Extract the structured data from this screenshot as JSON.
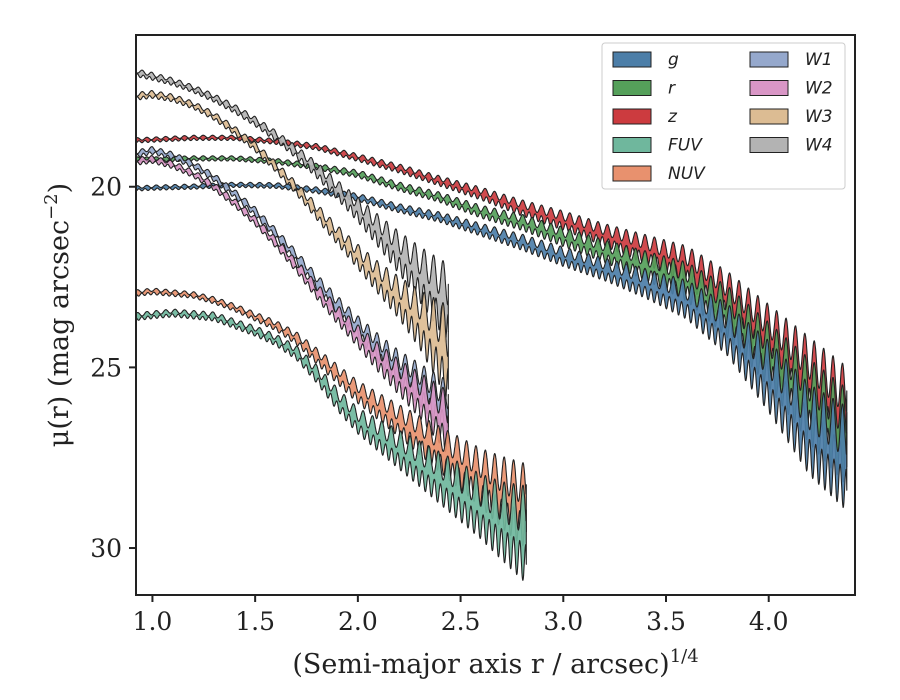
{
  "chart_data": {
    "type": "area",
    "title": "",
    "xlabel": "(Semi-major axis r / arcsec)",
    "xlabel_exponent": "1/4",
    "ylabel": "μ(r) (mag arcsec",
    "ylabel_exponent": "−2",
    "ylabel_close": ")",
    "xlim": [
      0.92,
      4.42
    ],
    "ylim": [
      31.3,
      15.8
    ],
    "y_inverted": true,
    "xticks": [
      1.0,
      1.5,
      2.0,
      2.5,
      3.0,
      3.5,
      4.0
    ],
    "xtick_labels": [
      "1.0",
      "1.5",
      "2.0",
      "2.5",
      "3.0",
      "3.5",
      "4.0"
    ],
    "yticks": [
      20,
      25,
      30
    ],
    "ytick_labels": [
      "20",
      "25",
      "30"
    ],
    "grid": false,
    "legend": {
      "placement": "top-right",
      "columns": 2
    },
    "series": [
      {
        "name": "g",
        "color": "#4c7ea8",
        "x": [
          0.92,
          1.0,
          1.2,
          1.4,
          1.6,
          1.8,
          2.0,
          2.2,
          2.4,
          2.6,
          2.8,
          3.0,
          3.2,
          3.4,
          3.6,
          3.8,
          4.0,
          4.2,
          4.38
        ],
        "y": [
          20.05,
          20.03,
          20.0,
          19.95,
          19.97,
          20.1,
          20.3,
          20.6,
          20.85,
          21.2,
          21.55,
          21.95,
          22.3,
          22.7,
          23.15,
          24.0,
          25.3,
          26.8,
          27.6
        ],
        "width": [
          0.08,
          0.08,
          0.08,
          0.08,
          0.09,
          0.1,
          0.12,
          0.14,
          0.16,
          0.2,
          0.25,
          0.3,
          0.35,
          0.45,
          0.6,
          0.8,
          1.1,
          1.4,
          1.6
        ]
      },
      {
        "name": "r",
        "color": "#55a05a",
        "x": [
          0.92,
          1.0,
          1.2,
          1.4,
          1.6,
          1.8,
          2.0,
          2.2,
          2.4,
          2.6,
          2.8,
          3.0,
          3.2,
          3.4,
          3.6,
          3.8,
          4.0,
          4.2,
          4.38
        ],
        "y": [
          19.25,
          19.25,
          19.22,
          19.22,
          19.3,
          19.45,
          19.65,
          20.0,
          20.3,
          20.7,
          21.0,
          21.4,
          21.8,
          22.2,
          22.65,
          23.5,
          24.7,
          26.0,
          27.0
        ],
        "width": [
          0.08,
          0.08,
          0.08,
          0.08,
          0.09,
          0.1,
          0.12,
          0.14,
          0.16,
          0.2,
          0.25,
          0.3,
          0.35,
          0.45,
          0.6,
          0.8,
          1.0,
          1.3,
          1.5
        ]
      },
      {
        "name": "z",
        "color": "#cc3b3f",
        "x": [
          0.92,
          1.0,
          1.2,
          1.4,
          1.6,
          1.8,
          2.0,
          2.2,
          2.4,
          2.6,
          2.8,
          3.0,
          3.2,
          3.4,
          3.6,
          3.8,
          4.0,
          4.2,
          4.38
        ],
        "y": [
          18.72,
          18.7,
          18.65,
          18.65,
          18.75,
          18.9,
          19.2,
          19.5,
          19.85,
          20.2,
          20.6,
          20.95,
          21.35,
          21.75,
          22.2,
          23.1,
          24.2,
          25.4,
          26.4
        ],
        "width": [
          0.08,
          0.08,
          0.08,
          0.08,
          0.09,
          0.1,
          0.12,
          0.14,
          0.16,
          0.2,
          0.25,
          0.3,
          0.35,
          0.45,
          0.6,
          0.8,
          1.0,
          1.3,
          1.5
        ]
      },
      {
        "name": "FUV",
        "color": "#6fb79d",
        "x": [
          0.92,
          1.0,
          1.1,
          1.2,
          1.3,
          1.4,
          1.5,
          1.6,
          1.7,
          1.8,
          1.9,
          2.0,
          2.1,
          2.2,
          2.3,
          2.4,
          2.5,
          2.6,
          2.7,
          2.82
        ],
        "y": [
          23.6,
          23.55,
          23.5,
          23.55,
          23.6,
          23.8,
          24.0,
          24.25,
          24.6,
          25.2,
          25.9,
          26.5,
          26.9,
          27.3,
          27.7,
          28.1,
          28.5,
          28.9,
          29.3,
          29.7
        ],
        "width": [
          0.12,
          0.12,
          0.12,
          0.13,
          0.14,
          0.15,
          0.16,
          0.18,
          0.22,
          0.28,
          0.35,
          0.4,
          0.5,
          0.6,
          0.7,
          0.8,
          0.9,
          1.0,
          1.2,
          1.5
        ]
      },
      {
        "name": "NUV",
        "color": "#e8916e",
        "x": [
          0.92,
          1.0,
          1.1,
          1.2,
          1.3,
          1.4,
          1.5,
          1.6,
          1.7,
          1.8,
          1.9,
          2.0,
          2.1,
          2.2,
          2.3,
          2.4,
          2.5,
          2.6,
          2.7,
          2.82
        ],
        "y": [
          22.95,
          22.9,
          22.95,
          23.0,
          23.15,
          23.35,
          23.6,
          23.85,
          24.2,
          24.7,
          25.2,
          25.7,
          26.1,
          26.5,
          26.9,
          27.3,
          27.7,
          28.1,
          28.5,
          28.9
        ],
        "width": [
          0.1,
          0.1,
          0.1,
          0.1,
          0.11,
          0.12,
          0.14,
          0.16,
          0.2,
          0.25,
          0.3,
          0.35,
          0.42,
          0.5,
          0.6,
          0.7,
          0.8,
          0.9,
          1.1,
          1.3
        ]
      },
      {
        "name": "W1",
        "color": "#95a8cc",
        "x": [
          0.92,
          1.0,
          1.1,
          1.2,
          1.3,
          1.4,
          1.5,
          1.6,
          1.7,
          1.8,
          1.9,
          2.0,
          2.1,
          2.2,
          2.3,
          2.4,
          2.44
        ],
        "y": [
          19.1,
          19.0,
          19.15,
          19.4,
          19.75,
          20.2,
          20.7,
          21.3,
          21.95,
          22.65,
          23.3,
          23.9,
          24.5,
          25.05,
          25.5,
          26.0,
          26.2
        ],
        "width": [
          0.12,
          0.12,
          0.12,
          0.12,
          0.13,
          0.14,
          0.15,
          0.17,
          0.2,
          0.25,
          0.3,
          0.35,
          0.45,
          0.55,
          0.65,
          0.8,
          0.9
        ]
      },
      {
        "name": "W2",
        "color": "#d996c6",
        "x": [
          0.92,
          1.0,
          1.1,
          1.2,
          1.3,
          1.4,
          1.5,
          1.6,
          1.7,
          1.8,
          1.9,
          2.0,
          2.1,
          2.2,
          2.3,
          2.4,
          2.44
        ],
        "y": [
          19.3,
          19.25,
          19.4,
          19.65,
          20.0,
          20.45,
          20.95,
          21.55,
          22.2,
          22.9,
          23.55,
          24.15,
          24.75,
          25.3,
          25.8,
          26.35,
          26.6
        ],
        "width": [
          0.12,
          0.12,
          0.12,
          0.12,
          0.13,
          0.14,
          0.15,
          0.17,
          0.2,
          0.25,
          0.3,
          0.35,
          0.45,
          0.55,
          0.7,
          0.9,
          1.0
        ]
      },
      {
        "name": "W3",
        "color": "#dcbc93",
        "x": [
          0.92,
          1.0,
          1.1,
          1.2,
          1.3,
          1.4,
          1.5,
          1.6,
          1.7,
          1.8,
          1.9,
          2.0,
          2.1,
          2.2,
          2.3,
          2.4,
          2.44
        ],
        "y": [
          17.5,
          17.45,
          17.55,
          17.75,
          18.05,
          18.45,
          18.9,
          19.45,
          20.05,
          20.7,
          21.35,
          21.95,
          22.55,
          23.1,
          23.7,
          24.4,
          24.8
        ],
        "width": [
          0.12,
          0.12,
          0.12,
          0.12,
          0.13,
          0.14,
          0.15,
          0.17,
          0.2,
          0.25,
          0.3,
          0.38,
          0.5,
          0.65,
          0.9,
          1.3,
          1.6
        ]
      },
      {
        "name": "W4",
        "color": "#b3b3b3",
        "x": [
          0.92,
          1.0,
          1.1,
          1.2,
          1.3,
          1.4,
          1.5,
          1.6,
          1.7,
          1.8,
          1.9,
          2.0,
          2.1,
          2.2,
          2.3,
          2.4,
          2.44
        ],
        "y": [
          16.85,
          16.95,
          17.1,
          17.3,
          17.55,
          17.85,
          18.2,
          18.6,
          19.05,
          19.55,
          20.1,
          20.65,
          21.25,
          21.85,
          22.45,
          23.05,
          23.35
        ],
        "width": [
          0.12,
          0.12,
          0.12,
          0.12,
          0.13,
          0.14,
          0.15,
          0.17,
          0.2,
          0.25,
          0.3,
          0.38,
          0.5,
          0.65,
          0.85,
          1.1,
          1.3
        ]
      }
    ]
  }
}
